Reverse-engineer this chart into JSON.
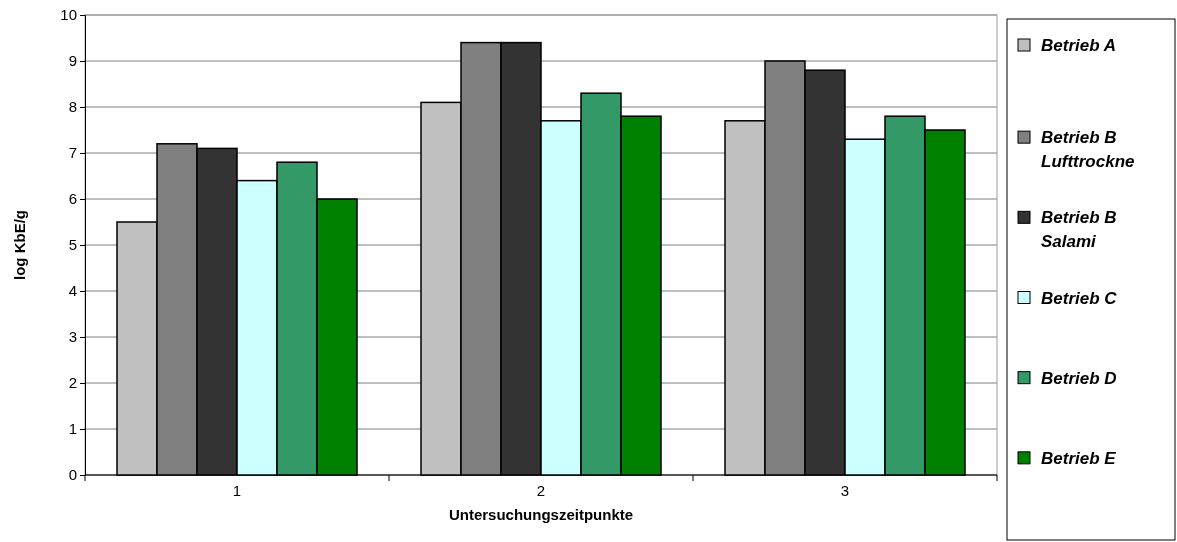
{
  "chart_data": {
    "type": "bar",
    "xlabel": "Untersuchungszeitpunkte",
    "ylabel": "log KbE/g",
    "categories": [
      "1",
      "2",
      "3"
    ],
    "ylim": [
      0,
      10
    ],
    "yticks": [
      0,
      1,
      2,
      3,
      4,
      5,
      6,
      7,
      8,
      9,
      10
    ],
    "grid": "y",
    "legend": "right",
    "series": [
      {
        "name": "Betrieb A",
        "color": "#c0c0c0",
        "values": [
          5.5,
          8.1,
          7.7
        ]
      },
      {
        "name": "Betrieb B Lufttrockne",
        "color": "#808080",
        "values": [
          7.2,
          9.4,
          9.0
        ]
      },
      {
        "name": "Betrieb B Salami",
        "color": "#333333",
        "values": [
          7.1,
          9.4,
          8.8
        ]
      },
      {
        "name": "Betrieb C",
        "color": "#ccffff",
        "values": [
          6.4,
          7.7,
          7.3
        ]
      },
      {
        "name": "Betrieb D",
        "color": "#339966",
        "values": [
          6.8,
          8.3,
          7.8
        ]
      },
      {
        "name": "Betrieb E",
        "color": "#008000",
        "values": [
          6.0,
          7.8,
          7.5
        ]
      }
    ]
  }
}
